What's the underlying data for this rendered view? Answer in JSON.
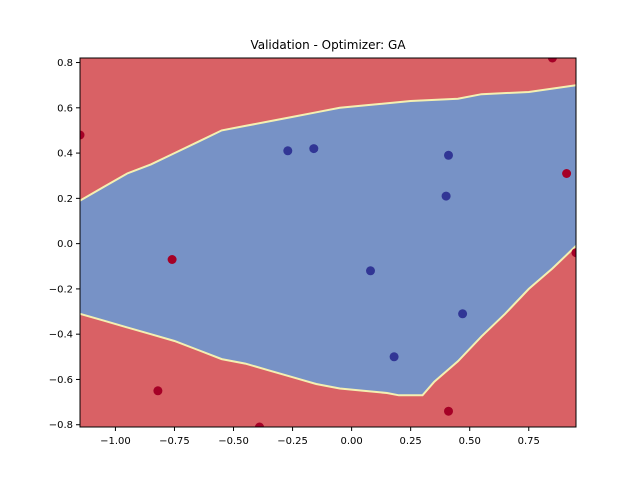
{
  "chart_data": {
    "type": "scatter",
    "title": "Validation - Optimizer: GA",
    "xlabel": "",
    "ylabel": "",
    "xlim": [
      -1.15,
      0.95
    ],
    "ylim": [
      -0.81,
      0.82
    ],
    "xticks": [
      -1.0,
      -0.75,
      -0.5,
      -0.25,
      0.0,
      0.25,
      0.5,
      0.75
    ],
    "xtick_labels": [
      "−1.00",
      "−0.75",
      "−0.50",
      "−0.25",
      "0.00",
      "0.25",
      "0.50",
      "0.75"
    ],
    "yticks": [
      -0.8,
      -0.6,
      -0.4,
      -0.2,
      0.0,
      0.2,
      0.4,
      0.6,
      0.8
    ],
    "ytick_labels": [
      "−0.8",
      "−0.6",
      "−0.4",
      "−0.2",
      "0.0",
      "0.2",
      "0.4",
      "0.6",
      "0.8"
    ],
    "grid": false,
    "legend": "none",
    "colors": {
      "class_0_region": "#d96165",
      "class_1_region": "#7792c6",
      "boundary": "#f4f0b2",
      "class_0_point": "#a50026",
      "class_1_point": "#313695"
    },
    "decision_region_class1": {
      "upper_boundary": [
        [
          -1.15,
          0.19
        ],
        [
          -1.05,
          0.25
        ],
        [
          -0.95,
          0.31
        ],
        [
          -0.85,
          0.35
        ],
        [
          -0.75,
          0.4
        ],
        [
          -0.65,
          0.45
        ],
        [
          -0.55,
          0.5
        ],
        [
          -0.45,
          0.52
        ],
        [
          -0.35,
          0.54
        ],
        [
          -0.25,
          0.56
        ],
        [
          -0.15,
          0.58
        ],
        [
          -0.05,
          0.6
        ],
        [
          0.05,
          0.61
        ],
        [
          0.25,
          0.63
        ],
        [
          0.45,
          0.64
        ],
        [
          0.55,
          0.66
        ],
        [
          0.75,
          0.67
        ],
        [
          0.95,
          0.7
        ]
      ],
      "lower_boundary": [
        [
          -1.15,
          -0.31
        ],
        [
          -1.05,
          -0.34
        ],
        [
          -0.95,
          -0.37
        ],
        [
          -0.85,
          -0.4
        ],
        [
          -0.75,
          -0.43
        ],
        [
          -0.65,
          -0.47
        ],
        [
          -0.55,
          -0.51
        ],
        [
          -0.45,
          -0.53
        ],
        [
          -0.35,
          -0.56
        ],
        [
          -0.25,
          -0.59
        ],
        [
          -0.15,
          -0.62
        ],
        [
          -0.05,
          -0.64
        ],
        [
          0.05,
          -0.65
        ],
        [
          0.15,
          -0.66
        ],
        [
          0.2,
          -0.67
        ],
        [
          0.3,
          -0.67
        ],
        [
          0.35,
          -0.61
        ],
        [
          0.45,
          -0.52
        ],
        [
          0.55,
          -0.41
        ],
        [
          0.65,
          -0.31
        ],
        [
          0.75,
          -0.2
        ],
        [
          0.85,
          -0.11
        ],
        [
          0.93,
          -0.03
        ],
        [
          0.95,
          -0.01
        ]
      ]
    },
    "points": [
      {
        "x": -1.15,
        "y": 0.48,
        "class": 0
      },
      {
        "x": -0.76,
        "y": -0.07,
        "class": 0
      },
      {
        "x": -0.82,
        "y": -0.65,
        "class": 0
      },
      {
        "x": -0.39,
        "y": -0.81,
        "class": 0
      },
      {
        "x": 0.41,
        "y": -0.74,
        "class": 0
      },
      {
        "x": 0.85,
        "y": 0.82,
        "class": 0
      },
      {
        "x": 0.91,
        "y": 0.31,
        "class": 0
      },
      {
        "x": 0.95,
        "y": -0.04,
        "class": 0
      },
      {
        "x": -0.27,
        "y": 0.41,
        "class": 1
      },
      {
        "x": -0.16,
        "y": 0.42,
        "class": 1
      },
      {
        "x": 0.41,
        "y": 0.39,
        "class": 1
      },
      {
        "x": 0.4,
        "y": 0.21,
        "class": 1
      },
      {
        "x": 0.08,
        "y": -0.12,
        "class": 1
      },
      {
        "x": 0.47,
        "y": -0.31,
        "class": 1
      },
      {
        "x": 0.18,
        "y": -0.5,
        "class": 1
      }
    ]
  }
}
